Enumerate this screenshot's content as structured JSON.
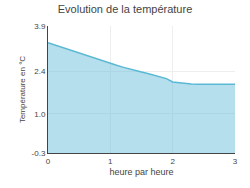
{
  "chart_data": {
    "type": "area",
    "title": "Evolution de la température",
    "xlabel": "heure par heure",
    "ylabel": "Température en °C",
    "x": [
      0,
      0.1,
      0.2,
      0.3,
      0.4,
      0.5,
      0.6,
      0.7,
      0.8,
      0.9,
      1.0,
      1.1,
      1.2,
      1.3,
      1.4,
      1.5,
      1.6,
      1.7,
      1.8,
      1.9,
      2.0,
      2.1,
      2.2,
      2.3,
      2.4,
      2.5,
      2.6,
      2.7,
      2.8,
      2.9,
      3.0
    ],
    "values": [
      3.35,
      3.28,
      3.21,
      3.14,
      3.07,
      3.0,
      2.93,
      2.86,
      2.79,
      2.73,
      2.66,
      2.6,
      2.54,
      2.48,
      2.43,
      2.38,
      2.33,
      2.28,
      2.23,
      2.16,
      2.05,
      2.02,
      2.0,
      1.98,
      1.97,
      1.97,
      1.97,
      1.97,
      1.97,
      1.97,
      1.97
    ],
    "color": "#5bb8d4",
    "xlim": [
      0,
      3
    ],
    "xticks": [
      0,
      1,
      2,
      3
    ],
    "ylim": [
      -0.3,
      3.9
    ],
    "yticks": [
      -0.3,
      {
        "value": 1.0,
        "label": "1.0"
      },
      2.4,
      3.9
    ],
    "grid": true
  }
}
